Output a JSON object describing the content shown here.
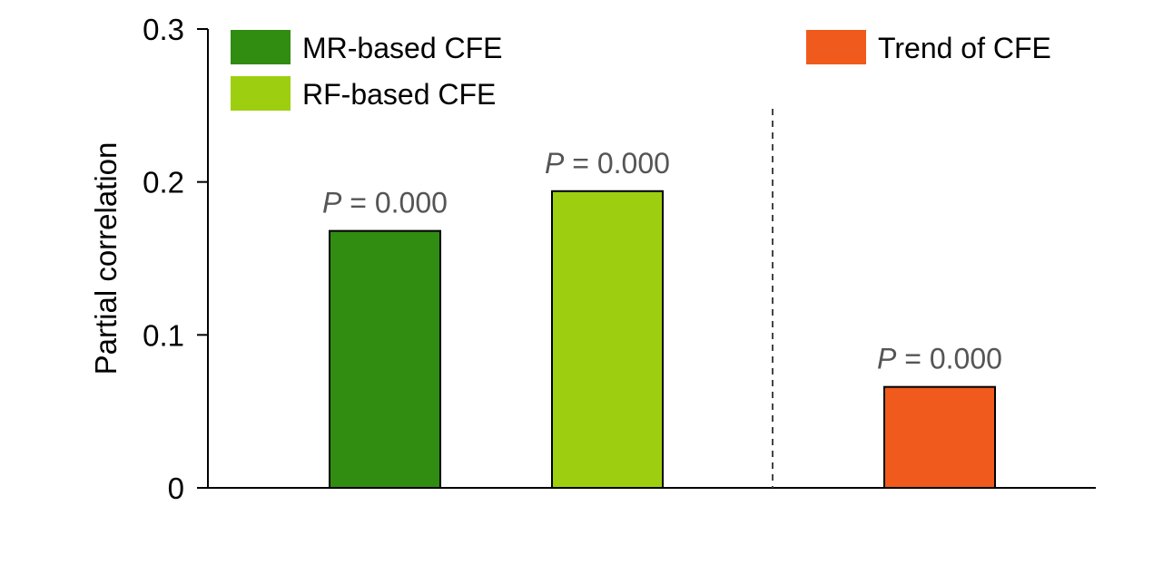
{
  "chart_data": {
    "type": "bar",
    "ylabel": "Partial correlation",
    "ylim": [
      0,
      0.3
    ],
    "yticks": [
      "0",
      "0.1",
      "0.2",
      "0.3"
    ],
    "grid": false,
    "bars": [
      {
        "series": "MR-based CFE",
        "value": 0.168,
        "p_label": "P = 0.000",
        "color": "#318C12"
      },
      {
        "series": "RF-based CFE",
        "value": 0.194,
        "p_label": "P = 0.000",
        "color": "#9DCF10"
      },
      {
        "series": "Trend of CFE",
        "value": 0.066,
        "p_label": "P = 0.000",
        "color": "#F05A1C"
      }
    ],
    "legend": [
      {
        "name": "MR-based CFE",
        "color": "#318C12"
      },
      {
        "name": "RF-based CFE",
        "color": "#9DCF10"
      },
      {
        "name": "Trend of CFE",
        "color": "#F05A1C"
      }
    ]
  }
}
